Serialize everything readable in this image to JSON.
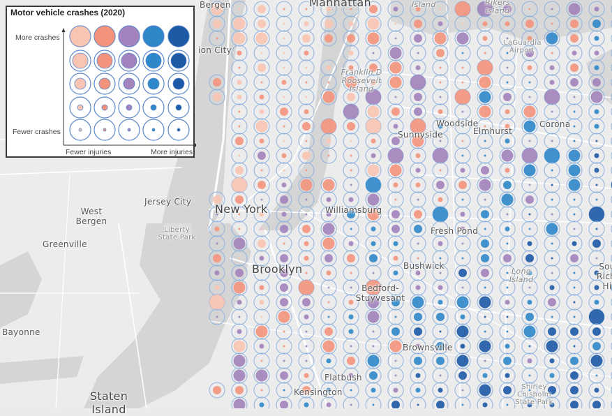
{
  "legend": {
    "title": "Motor vehicle crashes (2020)",
    "y_high": "More crashes",
    "y_low": "Fewer crashes",
    "x_low": "Fewer injuries",
    "x_high": "More injuries",
    "colors": [
      "#f9c4b4",
      "#f4937c",
      "#a283bd",
      "#2e87c9",
      "#1d5aa6"
    ],
    "ring_color": "#5b87c9"
  },
  "places": [
    {
      "name": "Bergen",
      "type": "city"
    },
    {
      "name": "Manhattan",
      "type": "big"
    },
    {
      "name": "Island",
      "type": "water"
    },
    {
      "name": "Rikers Island",
      "type": "water"
    },
    {
      "name": "ion City",
      "type": "city"
    },
    {
      "name": "LaGuardia Airport",
      "type": "park"
    },
    {
      "name": "Franklin D Roosevelt Island",
      "type": "water"
    },
    {
      "name": "Sunnyside",
      "type": "city"
    },
    {
      "name": "Woodside",
      "type": "city"
    },
    {
      "name": "Elmhurst",
      "type": "city"
    },
    {
      "name": "Corona",
      "type": "city"
    },
    {
      "name": "West Bergen",
      "type": "city"
    },
    {
      "name": "Jersey City",
      "type": "city"
    },
    {
      "name": "Liberty State Park",
      "type": "park"
    },
    {
      "name": "New York",
      "type": "big"
    },
    {
      "name": "Williamsburg",
      "type": "city"
    },
    {
      "name": "Fresh Pond",
      "type": "city"
    },
    {
      "name": "Greenville",
      "type": "city"
    },
    {
      "name": "Brooklyn",
      "type": "big"
    },
    {
      "name": "Bushwick",
      "type": "city"
    },
    {
      "name": "Long Island",
      "type": "water"
    },
    {
      "name": "Sou Richm Hi",
      "type": "city"
    },
    {
      "name": "Bedford-Stuyvesant",
      "type": "city"
    },
    {
      "name": "Bayonne",
      "type": "city"
    },
    {
      "name": "Brownsville",
      "type": "city"
    },
    {
      "name": "Flatbush",
      "type": "city"
    },
    {
      "name": "Kensington",
      "type": "city"
    },
    {
      "name": "Staten Island",
      "type": "big"
    },
    {
      "name": "Shirley Chisholm State Park",
      "type": "park"
    }
  ]
}
